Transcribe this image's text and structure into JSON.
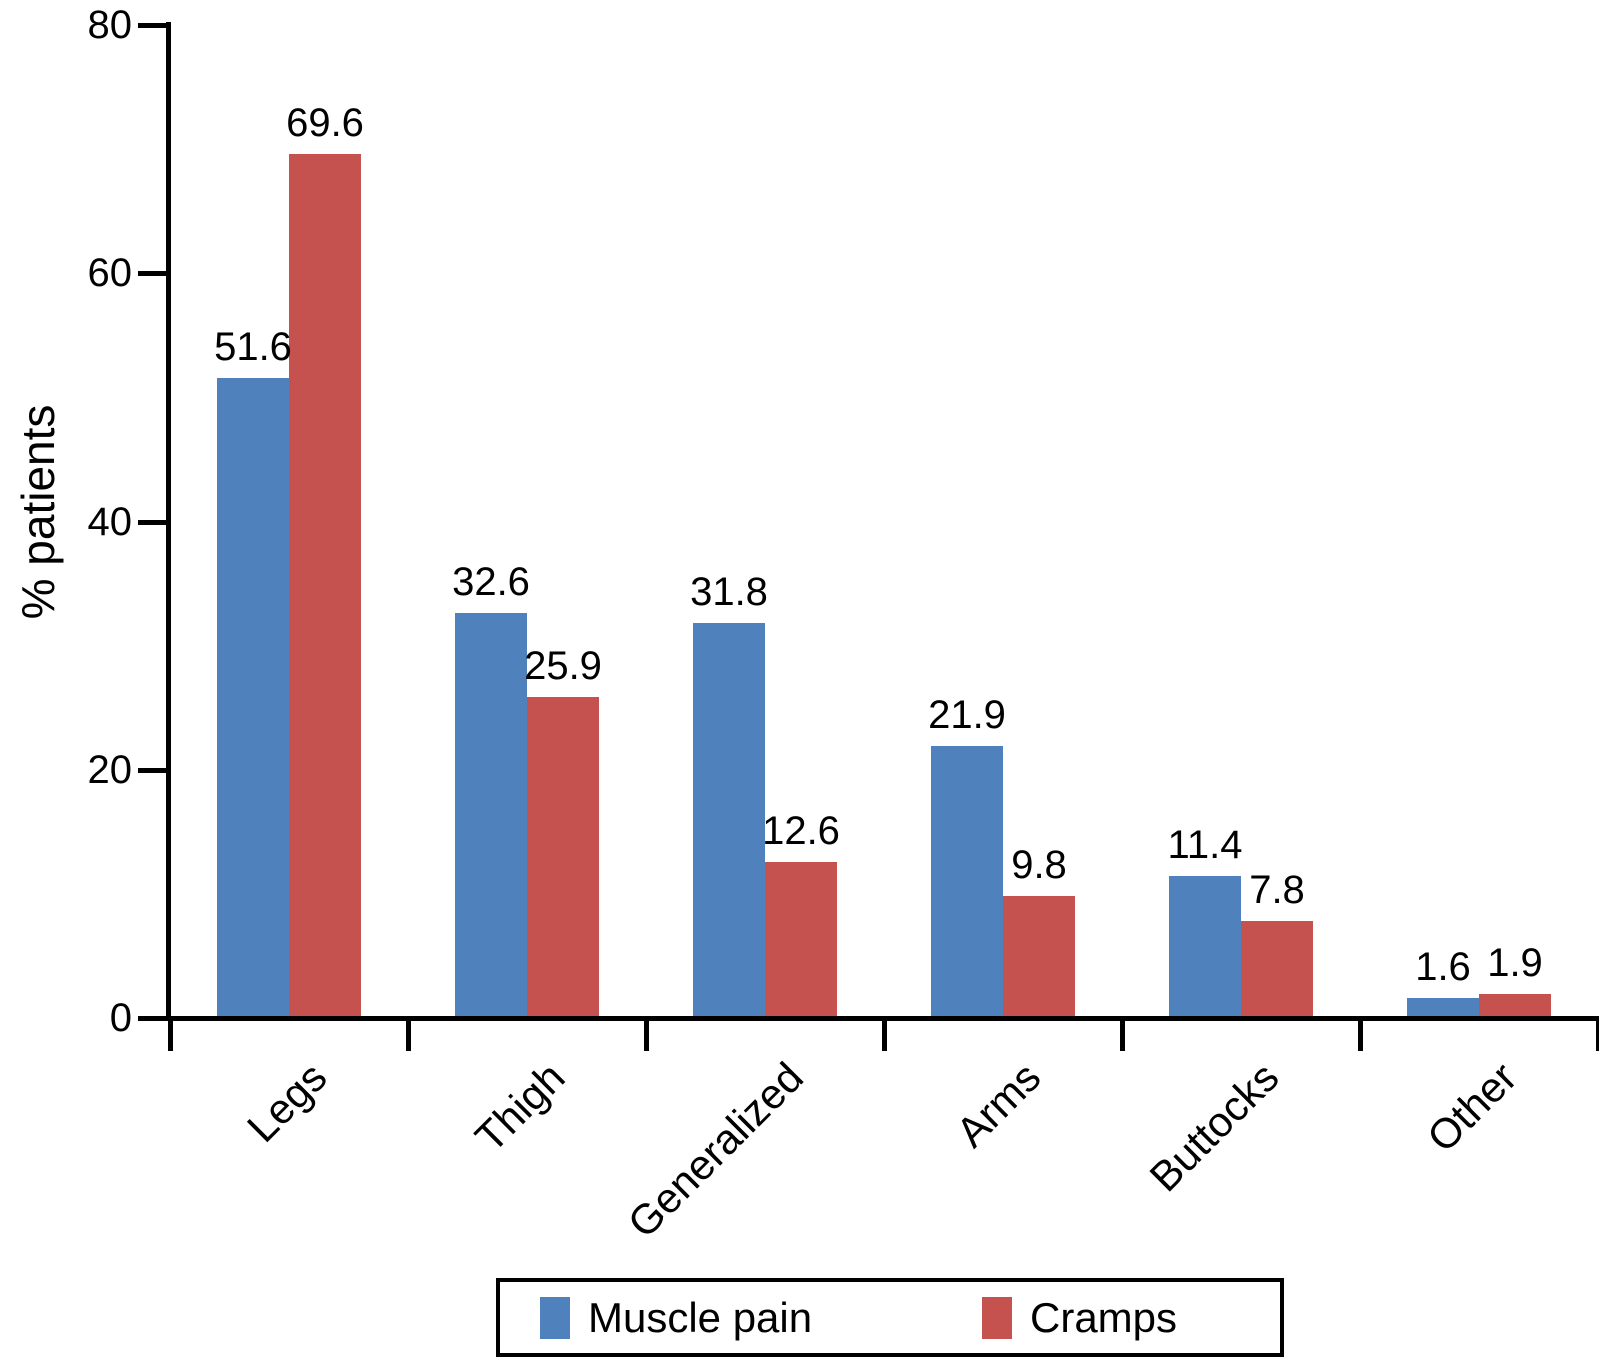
{
  "figure": {
    "y_axis_title": "% patients"
  },
  "chart_data": {
    "type": "bar",
    "title": "",
    "xlabel": "",
    "ylabel": "% patients",
    "categories": [
      "Legs",
      "Thigh",
      "Generalized",
      "Arms",
      "Buttocks",
      "Other"
    ],
    "series": [
      {
        "name": "Muscle pain",
        "color": "#4F81BD",
        "values": [
          51.6,
          32.6,
          31.8,
          21.9,
          11.4,
          1.6
        ]
      },
      {
        "name": "Cramps",
        "color": "#C6524F",
        "values": [
          69.6,
          25.9,
          12.6,
          9.8,
          7.8,
          1.9
        ]
      }
    ],
    "ylim": [
      0,
      80
    ],
    "yticks": [
      0,
      20,
      40,
      60,
      80
    ],
    "ytick_labels": [
      "0",
      "20",
      "40",
      "60",
      "80"
    ],
    "value_labels": [
      "51.6",
      "69.6",
      "32.6",
      "25.9",
      "31.8",
      "12.6",
      "21.9",
      "9.8",
      "11.4",
      "7.8",
      "1.6",
      "1.9"
    ],
    "grid": false,
    "bar_value_labels_shown": true,
    "xtick_label_rotation_deg": 45,
    "legend_position": "bottom",
    "axis_color": "#000000",
    "text_color": "#000000",
    "background_color": "#ffffff"
  }
}
